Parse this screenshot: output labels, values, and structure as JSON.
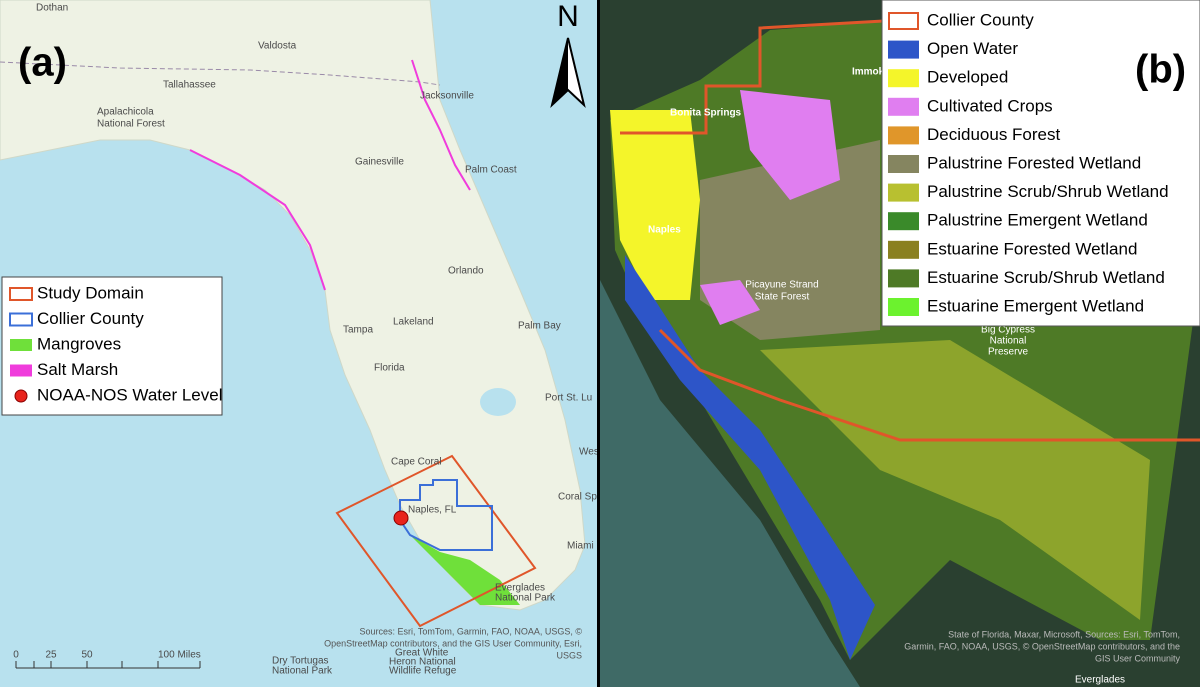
{
  "panel_a": {
    "label": "(a)",
    "north": "N",
    "places": [
      "Dothan",
      "Valdosta",
      "Tallahassee",
      "Apalachicola",
      "National Forest",
      "Jacksonville",
      "Gainesville",
      "Palm Coast",
      "Orlando",
      "Tampa",
      "Lakeland",
      "Palm Bay",
      "Florida",
      "Port St. Lu",
      "West",
      "Cape Coral",
      "Naples, FL",
      "Coral Spr",
      "Miami",
      "Everglades",
      "National Park",
      "Dry Tortugas",
      "National Park",
      "Great White",
      "Heron National",
      "Wildlife Refuge"
    ],
    "legend": [
      {
        "name": "Study Domain",
        "color": "#e0562a"
      },
      {
        "name": "Collier County",
        "color": "#3b6fd8"
      },
      {
        "name": "Mangroves",
        "color": "#6fe03a"
      },
      {
        "name": "Salt Marsh",
        "color": "#f03cdc"
      },
      {
        "name": "NOAA-NOS Water Level",
        "color": "#e8231c"
      }
    ],
    "scale": [
      "0",
      "25",
      "50",
      "100 Miles"
    ],
    "attribution": [
      "Sources: Esri, TomTom, Garmin, FAO, NOAA, USGS, ©",
      "OpenStreetMap contributors, and the GIS User Community, Esri,",
      "USGS"
    ]
  },
  "panel_b": {
    "label": "(b)",
    "places": [
      "Immokalee",
      "Bonita Springs",
      "Naples",
      "Picayune Strand",
      "State Forest",
      "Big Cypress",
      "National",
      "Preserve",
      "Everglades"
    ],
    "legend": [
      {
        "name": "Collier County",
        "color": "#e0562a"
      },
      {
        "name": "Open Water",
        "color": "#2d55c8"
      },
      {
        "name": "Developed",
        "color": "#f4f52a"
      },
      {
        "name": "Cultivated Crops",
        "color": "#e07ef0"
      },
      {
        "name": "Deciduous Forest",
        "color": "#e0962a"
      },
      {
        "name": "Palustrine Forested Wetland",
        "color": "#858560"
      },
      {
        "name": "Palustrine Scrub/Shrub Wetland",
        "color": "#b8c030"
      },
      {
        "name": "Palustrine Emergent Wetland",
        "color": "#3a8a2a"
      },
      {
        "name": "Estuarine Forested Wetland",
        "color": "#8a8020"
      },
      {
        "name": "Estuarine Scrub/Shrub Wetland",
        "color": "#4e7a26"
      },
      {
        "name": "Estuarine Emergent Wetland",
        "color": "#6cf22e"
      }
    ],
    "attribution": [
      "State of Florida, Maxar, Microsoft, Sources: Esri, TomTom,",
      "Garmin, FAO, NOAA, USGS, © OpenStreetMap contributors, and the",
      "GIS User Community"
    ]
  }
}
